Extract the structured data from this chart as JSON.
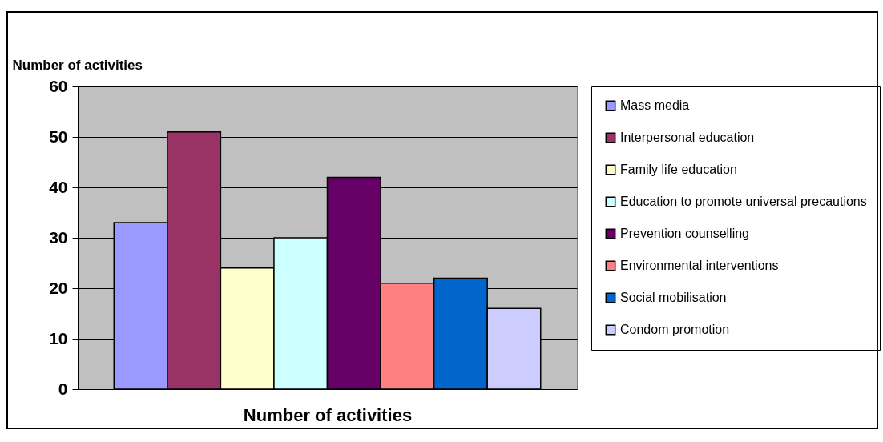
{
  "chart_data": {
    "type": "bar",
    "xlabel": "Number of activities",
    "ylabel": "Number of activities",
    "categories": [
      null
    ],
    "series": [
      {
        "name": "Mass media",
        "color": "#9999ff",
        "values": [
          33
        ]
      },
      {
        "name": "Interpersonal education",
        "color": "#993366",
        "values": [
          51
        ]
      },
      {
        "name": "Family life education",
        "color": "#ffffcc",
        "values": [
          24
        ]
      },
      {
        "name": "Education to promote universal precautions",
        "color": "#ccffff",
        "values": [
          30
        ]
      },
      {
        "name": "Prevention counselling",
        "color": "#660066",
        "values": [
          42
        ]
      },
      {
        "name": "Environmental interventions",
        "color": "#ff8080",
        "values": [
          21
        ]
      },
      {
        "name": "Social mobilisation",
        "color": "#0066cc",
        "values": [
          22
        ]
      },
      {
        "name": "Condom promotion",
        "color": "#ccccff",
        "values": [
          16
        ]
      }
    ],
    "ylim": [
      0,
      60
    ],
    "yticks": [
      0,
      10,
      20,
      30,
      40,
      50,
      60
    ],
    "grid": "y",
    "legend": "right"
  }
}
